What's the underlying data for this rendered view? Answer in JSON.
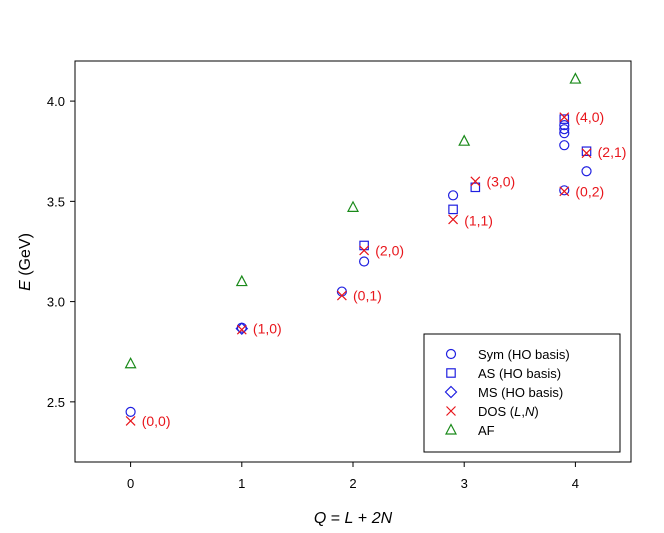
{
  "chart_data": {
    "type": "scatter",
    "title": "",
    "xlabel": "Q = L + 2N",
    "ylabel": "E (GeV)",
    "xlim": [
      -0.5,
      4.5
    ],
    "ylim": [
      2.2,
      4.2
    ],
    "xticks": [
      0,
      1,
      2,
      3,
      4
    ],
    "yticks": [
      2.5,
      3.0,
      3.5,
      4.0
    ],
    "xtick_labels": [
      "0",
      "1",
      "2",
      "3",
      "4"
    ],
    "ytick_labels": [
      "2.5",
      "3.0",
      "3.5",
      "4.0"
    ],
    "grid": false,
    "legend_position": "bottom-right",
    "series": [
      {
        "name": "Sym (HO basis)",
        "marker": "circle",
        "color": "#1f1fe0",
        "points": [
          [
            0,
            2.45
          ],
          [
            1,
            2.87
          ],
          [
            1.9,
            3.05
          ],
          [
            2.1,
            3.2
          ],
          [
            2.9,
            3.53
          ],
          [
            3.9,
            3.78
          ],
          [
            3.9,
            3.84
          ],
          [
            3.9,
            3.86
          ],
          [
            3.9,
            3.88
          ],
          [
            4.1,
            3.65
          ],
          [
            3.9,
            3.555
          ]
        ]
      },
      {
        "name": "AS (HO basis)",
        "marker": "square",
        "color": "#1f1fe0",
        "points": [
          [
            2.1,
            3.28
          ],
          [
            2.9,
            3.46
          ],
          [
            3.1,
            3.57
          ],
          [
            3.9,
            3.91
          ],
          [
            4.1,
            3.75
          ]
        ]
      },
      {
        "name": "MS (HO basis)",
        "marker": "diamond",
        "color": "#1f1fe0",
        "points": [
          [
            1,
            2.865
          ]
        ]
      },
      {
        "name": "DOS (L,N)",
        "marker": "x",
        "color": "#e8151b",
        "points": [
          [
            0,
            2.405
          ],
          [
            1,
            2.86
          ],
          [
            1.9,
            3.03
          ],
          [
            2.1,
            3.255
          ],
          [
            2.9,
            3.41
          ],
          [
            3.1,
            3.6
          ],
          [
            3.9,
            3.92
          ],
          [
            4.1,
            3.74
          ],
          [
            3.9,
            3.55
          ]
        ]
      },
      {
        "name": "AF",
        "marker": "triangle",
        "color": "#1a8a1a",
        "points": [
          [
            0,
            2.69
          ],
          [
            1,
            3.1
          ],
          [
            2,
            3.47
          ],
          [
            3,
            3.8
          ],
          [
            4,
            4.11
          ]
        ]
      }
    ],
    "annotations": [
      {
        "text": "(0,0)",
        "x": 0.1,
        "y": 2.405
      },
      {
        "text": "(1,0)",
        "x": 1.1,
        "y": 2.865
      },
      {
        "text": "(0,1)",
        "x": 2.0,
        "y": 3.03
      },
      {
        "text": "(2,0)",
        "x": 2.2,
        "y": 3.255
      },
      {
        "text": "(1,1)",
        "x": 3.0,
        "y": 3.405
      },
      {
        "text": "(3,0)",
        "x": 3.2,
        "y": 3.6
      },
      {
        "text": "(4,0)",
        "x": 4.0,
        "y": 3.92
      },
      {
        "text": "(2,1)",
        "x": 4.2,
        "y": 3.745
      },
      {
        "text": "(0,2)",
        "x": 4.0,
        "y": 3.55
      }
    ],
    "legend": [
      {
        "label": "Sym (HO basis)",
        "marker": "circle",
        "color": "#1f1fe0"
      },
      {
        "label": "AS (HO basis)",
        "marker": "square",
        "color": "#1f1fe0"
      },
      {
        "label": "MS (HO basis)",
        "marker": "diamond",
        "color": "#1f1fe0"
      },
      {
        "label_prefix": "DOS (",
        "label_i1": "L",
        "label_sep": ",",
        "label_i2": "N",
        "label_suffix": ")",
        "marker": "x",
        "color": "#e8151b"
      },
      {
        "label": "AF",
        "marker": "triangle",
        "color": "#1a8a1a"
      }
    ],
    "xlabel_parts": {
      "q": "Q",
      "eq": " = ",
      "l": "L",
      "plus": " + ",
      "n": "2N"
    },
    "ylabel_parts": {
      "e": "E",
      "unit": " (GeV)"
    }
  }
}
